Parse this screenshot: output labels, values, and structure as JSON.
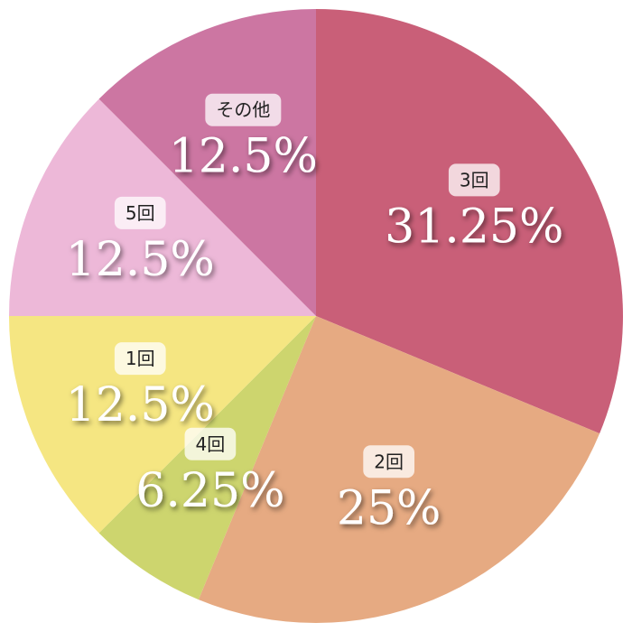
{
  "chart_data": {
    "type": "pie",
    "categories": [
      "3回",
      "2回",
      "4回",
      "1回",
      "5回",
      "その他"
    ],
    "values": [
      31.25,
      25,
      6.25,
      12.5,
      12.5,
      12.5
    ],
    "value_labels": [
      "31.25%",
      "25%",
      "6.25%",
      "12.5%",
      "12.5%",
      "12.5%"
    ],
    "colors": [
      "#c95f78",
      "#e6aa82",
      "#cdd56e",
      "#f5e682",
      "#edb8d8",
      "#cc76a2"
    ]
  }
}
